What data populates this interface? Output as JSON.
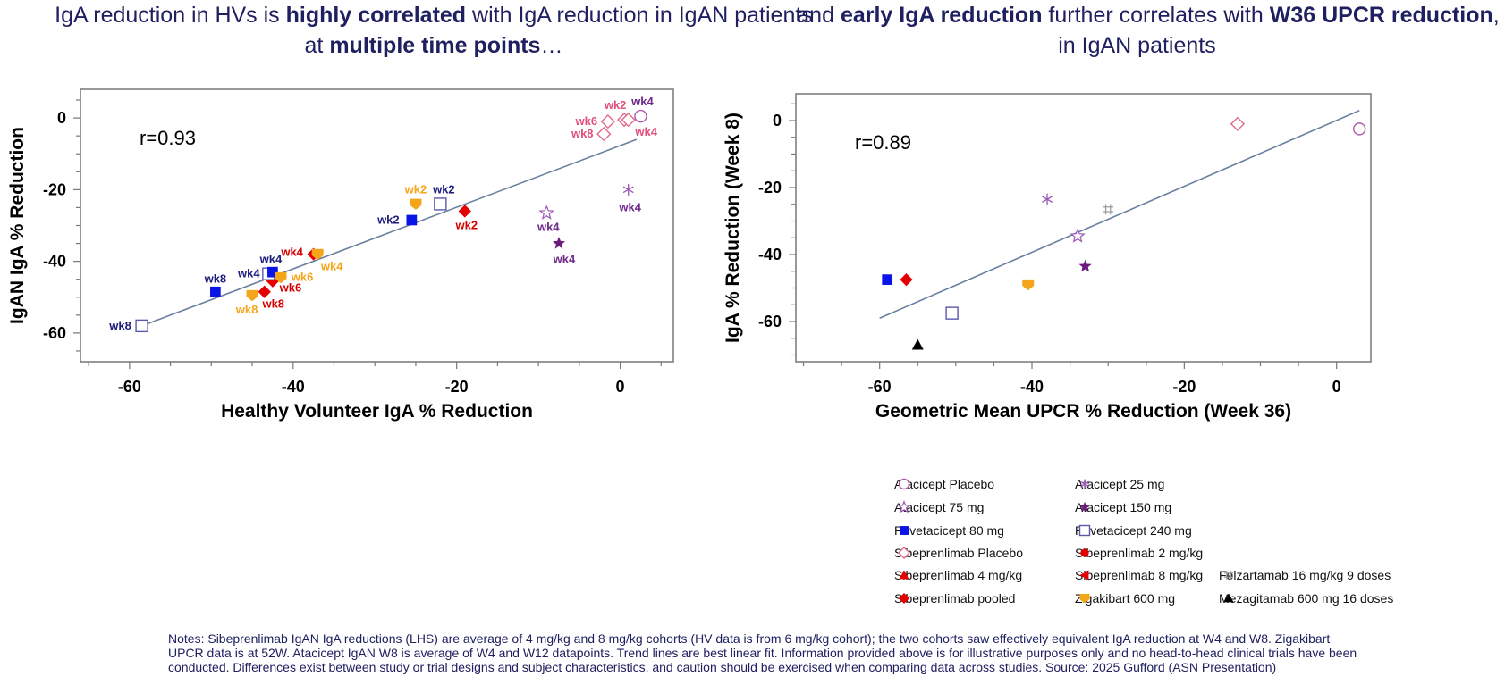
{
  "titles": {
    "left": {
      "parts": [
        {
          "t": "IgA reduction in HVs is ",
          "b": false
        },
        {
          "t": "highly correlated",
          "b": true
        },
        {
          "t": " with IgA reduction in IgAN patients at ",
          "b": false
        },
        {
          "t": "multiple time points",
          "b": true
        },
        {
          "t": "…",
          "b": false
        }
      ]
    },
    "right": {
      "parts": [
        {
          "t": "…and ",
          "b": false
        },
        {
          "t": "early IgA reduction",
          "b": true
        },
        {
          "t": " further correlates with ",
          "b": false
        },
        {
          "t": "W36 UPCR reduction",
          "b": true
        },
        {
          "t": ", in IgAN patients",
          "b": false
        }
      ]
    }
  },
  "colors": {
    "trend": "#6a7f9f",
    "frame": "#777777",
    "ataPlacebo": "#b05aa8",
    "ata75": "#9b59b6",
    "ata25": "#9b59b6",
    "ata150": "#6d1a7e",
    "pove80": "#0a14e6",
    "pove240": "#5a5aaa",
    "sibePlacebo": "#e26a86",
    "sibe": "#e50000",
    "ziga": "#f5a51a",
    "felz": "#999999",
    "meza": "#000000",
    "labelNavy": "#1c1c7e",
    "labelRed": "#d40000",
    "labelPink": "#e0507a",
    "labelPurple": "#6d2a8a",
    "labelYellow": "#f5a51a"
  },
  "chart_data": [
    {
      "type": "scatter",
      "title": "",
      "annotation": "r=0.93",
      "xlabel": "Healthy Volunteer IgA % Reduction",
      "ylabel": "IgAN IgA % Reduction",
      "xlim": [
        -66,
        6.5
      ],
      "ylim": [
        -68,
        8
      ],
      "xticks": [
        -60,
        -40,
        -20,
        0
      ],
      "yticks": [
        0,
        -20,
        -40,
        -60
      ],
      "trendline": {
        "from": [
          -58.5,
          -58
        ],
        "to": [
          2,
          -6
        ]
      },
      "points": [
        {
          "series": "Povetacicept 240 mg",
          "marker": "square-open",
          "color": "pove240",
          "x": -58.5,
          "y": -58,
          "label": "wk8",
          "labelColor": "labelNavy",
          "ldx": -24,
          "ldy": 0
        },
        {
          "series": "Povetacicept 80 mg",
          "marker": "square",
          "color": "pove80",
          "x": -49.5,
          "y": -48.5,
          "label": "wk8",
          "labelColor": "labelNavy",
          "ldx": 0,
          "ldy": -14
        },
        {
          "series": "Zigakibart 600 mg",
          "marker": "pentagon-down",
          "color": "ziga",
          "x": -45,
          "y": -49.5,
          "label": "wk8",
          "labelColor": "labelYellow",
          "ldx": -6,
          "ldy": 16
        },
        {
          "series": "Sibeprenlimab pooled",
          "marker": "diamond",
          "color": "sibe",
          "x": -43.5,
          "y": -48.5,
          "label": "wk8",
          "labelColor": "labelRed",
          "ldx": 10,
          "ldy": 14
        },
        {
          "series": "Sibeprenlimab pooled",
          "marker": "diamond",
          "color": "sibe",
          "x": -42.5,
          "y": -45.5,
          "label": "wk6",
          "labelColor": "labelRed",
          "ldx": 20,
          "ldy": 8
        },
        {
          "series": "Povetacicept 240 mg",
          "marker": "square-open",
          "color": "pove240",
          "x": -43,
          "y": -43.5,
          "label": "wk4",
          "labelColor": "labelNavy",
          "ldx": -22,
          "ldy": 0
        },
        {
          "series": "Povetacicept 80 mg",
          "marker": "square",
          "color": "pove80",
          "x": -42.5,
          "y": -43,
          "label": "wk4",
          "labelColor": "labelNavy",
          "ldx": -2,
          "ldy": -14
        },
        {
          "series": "Zigakibart 600 mg",
          "marker": "pentagon-down",
          "color": "ziga",
          "x": -41.5,
          "y": -44.5,
          "label": "wk6",
          "labelColor": "labelYellow",
          "ldx": 24,
          "ldy": 0
        },
        {
          "series": "Sibeprenlimab pooled",
          "marker": "diamond",
          "color": "sibe",
          "x": -37.5,
          "y": -38,
          "label": "wk4",
          "labelColor": "labelRed",
          "ldx": -24,
          "ldy": -2
        },
        {
          "series": "Zigakibart 600 mg",
          "marker": "pentagon-down",
          "color": "ziga",
          "x": -37,
          "y": -38,
          "label": "wk4",
          "labelColor": "labelYellow",
          "ldx": 16,
          "ldy": 14
        },
        {
          "series": "Zigakibart 600 mg",
          "marker": "pentagon-down",
          "color": "ziga",
          "x": -25,
          "y": -24,
          "label": "wk2",
          "labelColor": "labelYellow",
          "ldx": 0,
          "ldy": -16
        },
        {
          "series": "Povetacicept 80 mg",
          "marker": "square",
          "color": "pove80",
          "x": -25.5,
          "y": -28.5,
          "label": "wk2",
          "labelColor": "labelNavy",
          "ldx": -26,
          "ldy": 0
        },
        {
          "series": "Povetacicept 240 mg",
          "marker": "square-open",
          "color": "pove240",
          "x": -22,
          "y": -24,
          "label": "wk2",
          "labelColor": "labelNavy",
          "ldx": 4,
          "ldy": -16
        },
        {
          "series": "Sibeprenlimab pooled",
          "marker": "diamond",
          "color": "sibe",
          "x": -19,
          "y": -26,
          "label": "wk2",
          "labelColor": "labelRed",
          "ldx": 2,
          "ldy": 16
        },
        {
          "series": "Atacicept 75 mg",
          "marker": "star-open",
          "color": "ata75",
          "x": -9,
          "y": -26.5,
          "label": "wk4",
          "labelColor": "labelPurple",
          "ldx": 2,
          "ldy": 16
        },
        {
          "series": "Atacicept 150 mg",
          "marker": "star",
          "color": "ata150",
          "x": -7.5,
          "y": -35,
          "label": "wk4",
          "labelColor": "labelPurple",
          "ldx": 6,
          "ldy": 18
        },
        {
          "series": "Atacicept 25 mg",
          "marker": "asterisk",
          "color": "ata25",
          "x": 1,
          "y": -20,
          "label": "wk4",
          "labelColor": "labelPurple",
          "ldx": 2,
          "ldy": 20
        },
        {
          "series": "Sibeprenlimab Placebo",
          "marker": "diamond-open",
          "color": "sibePlacebo",
          "x": -1.5,
          "y": -1,
          "label": "wk6",
          "labelColor": "labelPink",
          "ldx": -24,
          "ldy": 0
        },
        {
          "series": "Sibeprenlimab Placebo",
          "marker": "diamond-open",
          "color": "sibePlacebo",
          "x": -2,
          "y": -4.5,
          "label": "wk8",
          "labelColor": "labelPink",
          "ldx": -24,
          "ldy": 0
        },
        {
          "series": "Sibeprenlimab Placebo",
          "marker": "diamond-open",
          "color": "sibePlacebo",
          "x": 0.5,
          "y": -0.5,
          "label": "wk2",
          "labelColor": "labelPink",
          "ldx": -10,
          "ldy": -16
        },
        {
          "series": "Sibeprenlimab Placebo",
          "marker": "diamond-open",
          "color": "sibePlacebo",
          "x": 1,
          "y": -0.5,
          "label": "wk4",
          "labelColor": "labelPink",
          "ldx": 20,
          "ldy": 14
        },
        {
          "series": "Atacicept Placebo",
          "marker": "circle-open",
          "color": "ataPlacebo",
          "x": 2.5,
          "y": 0.5,
          "label": "wk4",
          "labelColor": "labelPurple",
          "ldx": 2,
          "ldy": -16
        }
      ]
    },
    {
      "type": "scatter",
      "title": "",
      "annotation": "r=0.89",
      "xlabel": "Geometric Mean UPCR % Reduction (Week 36)",
      "ylabel": "IgA % Reduction (Week 8)",
      "xlim": [
        -71,
        4.5
      ],
      "ylim": [
        -72,
        8
      ],
      "xticks": [
        -60,
        -40,
        -20,
        0
      ],
      "yticks": [
        0,
        -20,
        -40,
        -60
      ],
      "trendline": {
        "from": [
          -60,
          -59
        ],
        "to": [
          3,
          3
        ]
      },
      "points": [
        {
          "series": "Atacicept Placebo",
          "marker": "circle-open",
          "color": "ataPlacebo",
          "x": 3,
          "y": -2.5
        },
        {
          "series": "Sibeprenlimab Placebo",
          "marker": "diamond-open",
          "color": "sibePlacebo",
          "x": -13,
          "y": -1
        },
        {
          "series": "Atacicept 25 mg",
          "marker": "asterisk",
          "color": "ata25",
          "x": -38,
          "y": -23.5
        },
        {
          "series": "Felzartamab 16 mg/kg 9 doses",
          "marker": "hash",
          "color": "felz",
          "x": -30,
          "y": -26.5
        },
        {
          "series": "Atacicept 75 mg",
          "marker": "star-open",
          "color": "ata75",
          "x": -34,
          "y": -34.5
        },
        {
          "series": "Atacicept 150 mg",
          "marker": "star",
          "color": "ata150",
          "x": -33,
          "y": -43.5
        },
        {
          "series": "Zigakibart 600 mg",
          "marker": "pentagon-down",
          "color": "ziga",
          "x": -40.5,
          "y": -49
        },
        {
          "series": "Povetacicept 80 mg",
          "marker": "square",
          "color": "pove80",
          "x": -59,
          "y": -47.5
        },
        {
          "series": "Sibeprenlimab pooled",
          "marker": "diamond",
          "color": "sibe",
          "x": -56.5,
          "y": -47.5
        },
        {
          "series": "Povetacicept 240 mg",
          "marker": "square-open",
          "color": "pove240",
          "x": -50.5,
          "y": -57.5
        },
        {
          "series": "Mezagitamab 600 mg 16 doses",
          "marker": "triangle",
          "color": "meza",
          "x": -55,
          "y": -67
        }
      ]
    }
  ],
  "legend": {
    "items": [
      {
        "label": "Atacicept Placebo",
        "marker": "circle-open",
        "color": "ataPlacebo"
      },
      {
        "label": "Atacicept 25 mg",
        "marker": "asterisk",
        "color": "ata25"
      },
      {
        "label": "Atacicept 75 mg",
        "marker": "star-open",
        "color": "ata75"
      },
      {
        "label": "Atacicept 150 mg",
        "marker": "star",
        "color": "ata150"
      },
      {
        "label": "Povetacicept 80 mg",
        "marker": "square",
        "color": "pove80"
      },
      {
        "label": "Povetacicept 240 mg",
        "marker": "square-open",
        "color": "pove240"
      },
      {
        "label": "Sibeprenlimab Placebo",
        "marker": "diamond-open",
        "color": "sibePlacebo"
      },
      {
        "label": "Sibeprenlimab 2 mg/kg",
        "marker": "circle",
        "color": "sibe"
      },
      {
        "label": "Sibeprenlimab 4 mg/kg",
        "marker": "triangle",
        "color": "sibe"
      },
      {
        "label": "Sibeprenlimab 8 mg/kg",
        "marker": "triangle-left",
        "color": "sibe"
      },
      {
        "label": "Felzartamab 16 mg/kg 9 doses",
        "marker": "hash",
        "color": "felz"
      },
      {
        "label": "Sibeprenlimab pooled",
        "marker": "diamond",
        "color": "sibe"
      },
      {
        "label": "Zigakibart 600 mg",
        "marker": "pentagon-down",
        "color": "ziga"
      },
      {
        "label": "Mezagitamab 600 mg 16 doses",
        "marker": "triangle",
        "color": "meza"
      }
    ]
  },
  "notes": "Notes: Sibeprenlimab IgAN IgA reductions (LHS) are average of 4 mg/kg and 8 mg/kg cohorts (HV data is from 6 mg/kg cohort); the two cohorts saw effectively equivalent IgA reduction at W4 and W8. Zigakibart UPCR data is at 52W. Atacicept IgAN W8 is average of W4 and W12 datapoints. Trend lines are best linear fit. Information provided above is for illustrative purposes only and no head-to-head clinical trials have been conducted.  Differences exist between study or trial designs and subject characteristics, and caution should be exercised when comparing data across studies. Source: 2025 Gufford (ASN Presentation)"
}
